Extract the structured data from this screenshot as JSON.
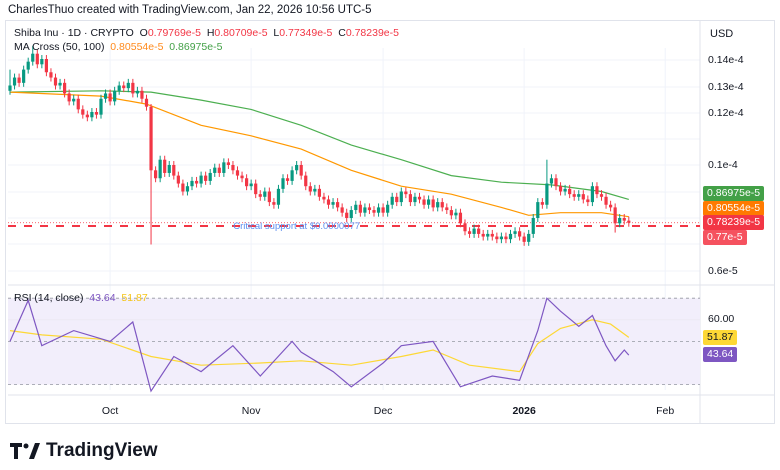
{
  "caption": "CharlesThuo created with TradingView.com, Jan 22, 2026 10:56 UTC-5",
  "symbol": {
    "name": "Shiba Inu · 1D · CRYPTO",
    "o_label": "O",
    "o": "0.79769e-5",
    "h_label": "H",
    "h": "0.80709e-5",
    "l_label": "L",
    "l": "0.77349e-5",
    "c_label": "C",
    "c": "0.78239e-5"
  },
  "ma_legend": {
    "name": "MA Cross (50, 100)",
    "ma50": "0.80554e-5",
    "ma100": "0.86975e-5"
  },
  "rsi_legend": {
    "name": "RSI (14, close)",
    "rsi": "43.64",
    "rsi_ma": "51.87"
  },
  "currency": "USD",
  "price_axis": [
    "0.14e-4",
    "0.13e-4",
    "0.12e-4",
    "0.1e-4",
    "0.6e-5"
  ],
  "price_tags": {
    "ma100": "0.86975e-5",
    "ma50": "0.80554e-5",
    "close": "0.78239e-5",
    "support": "0.77e-5"
  },
  "rsi_axis": [
    "60.00"
  ],
  "rsi_tags": {
    "rsi_ma": "51.87",
    "rsi": "43.64"
  },
  "time_axis": [
    "Oct",
    "Nov",
    "Dec",
    "2026",
    "Feb"
  ],
  "annotation": "Critical support at $0.0000077",
  "brand": "TradingView",
  "colors": {
    "up": "#089981",
    "down": "#f23645",
    "ma50": "#ff9800",
    "ma100": "#4caf50",
    "rsi": "#7e57c2",
    "rsi_ma": "#fdd835",
    "support": "#f23645",
    "annotation": "#5b8def"
  },
  "chart_data": {
    "type": "candlestick",
    "units": "e-5 USD",
    "first_open": 1.28,
    "closes": [
      1.3,
      1.33,
      1.31,
      1.36,
      1.39,
      1.42,
      1.38,
      1.4,
      1.35,
      1.33,
      1.3,
      1.31,
      1.27,
      1.24,
      1.25,
      1.21,
      1.19,
      1.18,
      1.2,
      1.19,
      1.25,
      1.27,
      1.24,
      1.28,
      1.3,
      1.29,
      1.31,
      1.27,
      1.28,
      1.25,
      1.22,
      0.98,
      0.95,
      1.02,
      0.97,
      1.0,
      0.96,
      0.93,
      0.9,
      0.92,
      0.94,
      0.93,
      0.96,
      0.94,
      0.97,
      0.99,
      0.97,
      1.01,
      1.0,
      0.98,
      0.96,
      0.95,
      0.92,
      0.93,
      0.89,
      0.88,
      0.9,
      0.86,
      0.85,
      0.91,
      0.95,
      0.94,
      0.98,
      1.0,
      0.96,
      0.92,
      0.9,
      0.91,
      0.88,
      0.87,
      0.85,
      0.86,
      0.84,
      0.82,
      0.8,
      0.83,
      0.85,
      0.82,
      0.84,
      0.83,
      0.82,
      0.84,
      0.82,
      0.85,
      0.88,
      0.86,
      0.9,
      0.89,
      0.86,
      0.88,
      0.87,
      0.85,
      0.87,
      0.84,
      0.86,
      0.84,
      0.83,
      0.81,
      0.82,
      0.78,
      0.75,
      0.74,
      0.76,
      0.74,
      0.73,
      0.74,
      0.73,
      0.72,
      0.73,
      0.72,
      0.74,
      0.75,
      0.73,
      0.71,
      0.74,
      0.8,
      0.86,
      0.85,
      0.93,
      0.95,
      0.92,
      0.9,
      0.91,
      0.89,
      0.88,
      0.89,
      0.87,
      0.86,
      0.92,
      0.89,
      0.88,
      0.85,
      0.84,
      0.78,
      0.8,
      0.79,
      0.782
    ],
    "wick_overrides": {
      "31": {
        "low": 0.7,
        "high": 1.23
      },
      "118": {
        "high": 1.02
      },
      "133": {
        "low": 0.745
      },
      "0": {
        "high": 1.36
      },
      "5": {
        "high": 1.45
      }
    },
    "ma50": [
      [
        0,
        1.275
      ],
      [
        20,
        1.26
      ],
      [
        30,
        1.23
      ],
      [
        42,
        1.15
      ],
      [
        53,
        1.11
      ],
      [
        64,
        1.06
      ],
      [
        75,
        0.98
      ],
      [
        86,
        0.92
      ],
      [
        97,
        0.89
      ],
      [
        108,
        0.84
      ],
      [
        114,
        0.81
      ],
      [
        121,
        0.82
      ],
      [
        130,
        0.82
      ],
      [
        136,
        0.805
      ]
    ],
    "ma100": [
      [
        0,
        1.275
      ],
      [
        20,
        1.28
      ],
      [
        31,
        1.275
      ],
      [
        42,
        1.245
      ],
      [
        53,
        1.21
      ],
      [
        64,
        1.15
      ],
      [
        75,
        1.075
      ],
      [
        86,
        1.02
      ],
      [
        97,
        0.96
      ],
      [
        108,
        0.935
      ],
      [
        119,
        0.925
      ],
      [
        130,
        0.9
      ],
      [
        136,
        0.87
      ]
    ],
    "support_level": 0.77,
    "price_range": [
      0.55,
      1.45
    ],
    "rsi": [
      [
        0,
        50
      ],
      [
        4,
        69
      ],
      [
        7,
        48
      ],
      [
        14,
        55
      ],
      [
        22,
        50
      ],
      [
        27,
        59
      ],
      [
        31,
        27
      ],
      [
        36,
        43
      ],
      [
        42,
        36
      ],
      [
        49,
        48
      ],
      [
        55,
        34
      ],
      [
        62,
        50
      ],
      [
        64,
        45
      ],
      [
        71,
        36
      ],
      [
        75,
        29
      ],
      [
        82,
        40
      ],
      [
        86,
        48
      ],
      [
        93,
        50
      ],
      [
        99,
        29
      ],
      [
        106,
        34
      ],
      [
        112,
        32
      ],
      [
        116,
        55
      ],
      [
        118,
        70
      ],
      [
        121,
        64
      ],
      [
        125,
        57
      ],
      [
        128,
        62
      ],
      [
        131,
        48
      ],
      [
        133,
        41
      ],
      [
        135,
        46
      ],
      [
        136,
        43.64
      ]
    ],
    "rsi_ma": [
      [
        0,
        55
      ],
      [
        7,
        53
      ],
      [
        20,
        51
      ],
      [
        31,
        43
      ],
      [
        42,
        39
      ],
      [
        55,
        40
      ],
      [
        64,
        41
      ],
      [
        75,
        39
      ],
      [
        86,
        43
      ],
      [
        93,
        46
      ],
      [
        101,
        39
      ],
      [
        112,
        36
      ],
      [
        116,
        49
      ],
      [
        121,
        56
      ],
      [
        128,
        60
      ],
      [
        132,
        58
      ],
      [
        136,
        51.87
      ]
    ],
    "rsi_range": [
      22,
      72
    ],
    "rsi_bands": [
      70,
      50,
      30
    ],
    "x_labels": [
      {
        "label": "Oct",
        "day": 22
      },
      {
        "label": "Nov",
        "day": 53
      },
      {
        "label": "Dec",
        "day": 82
      },
      {
        "label": "2026",
        "day": 113
      },
      {
        "label": "Feb",
        "day": 144
      }
    ]
  }
}
